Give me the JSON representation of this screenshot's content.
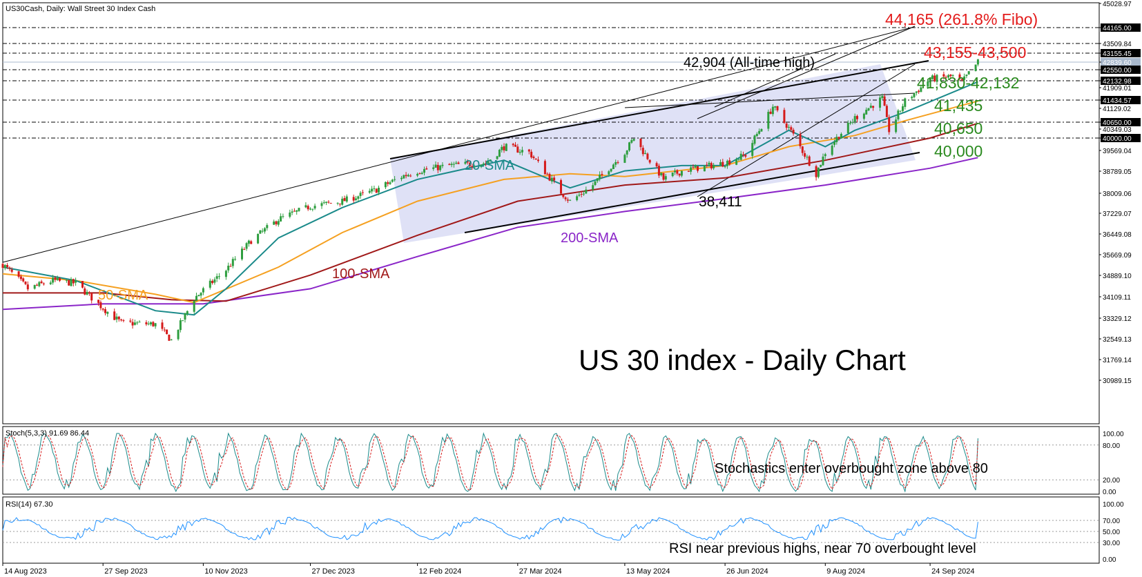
{
  "header": "US30Cash, Daily:  Wall Street 30 Index Cash",
  "chart_title": "US 30 index - Daily Chart",
  "price_axis": [
    "45028.97",
    "44165.00",
    "43509.84",
    "43155.45",
    "42839.60",
    "42550.00",
    "42132.98",
    "41909.01",
    "41434.57",
    "41129.02",
    "40650.00",
    "40349.03",
    "40000.00",
    "39569.04",
    "38789.05",
    "38009.06",
    "37229.07",
    "36449.08",
    "35669.09",
    "34889.10",
    "34109.11",
    "33329.12",
    "32549.13",
    "31769.14",
    "30989.15"
  ],
  "price_axis_values": [
    45028.97,
    44165.0,
    43509.84,
    43155.45,
    42839.6,
    42550.0,
    42132.98,
    41909.01,
    41434.57,
    41129.02,
    40650.0,
    40349.03,
    40000.0,
    39569.04,
    38789.05,
    38009.06,
    37229.07,
    36449.08,
    35669.09,
    34889.1,
    34109.11,
    33329.12,
    32549.13,
    31769.14,
    30989.15
  ],
  "dates": [
    "14 Aug 2023",
    "27 Sep 2023",
    "10 Nov 2023",
    "27 Dec 2023",
    "12 Feb 2024",
    "27 Mar 2024",
    "13 May 2024",
    "26 Jun 2024",
    "9 Aug 2024",
    "24 Sep 2024"
  ],
  "annotations": {
    "fibo": "44,165 (261.8% Fibo)",
    "res_zone": "43,155-43,500",
    "ath": "42,904 (All-time high)",
    "zone1": "41,830-42,132",
    "s1": "41,435",
    "s2": "40,650",
    "s3": "40,000",
    "low": "38,411",
    "sma20": "20-SMA",
    "sma50": "50-SMA",
    "sma100": "100-SMA",
    "sma200": "200-SMA"
  },
  "stoch": {
    "header": "Stoch(5,3,3) 91.69 86.44",
    "axis": [
      "100.00",
      "80.00",
      "20.00",
      "0.00"
    ],
    "note": "Stochastics enter overbought zone above 80"
  },
  "rsi": {
    "header": "RSI(14) 67.30",
    "axis": [
      "100.00",
      "70.00",
      "50.00",
      "30.00",
      "0.00"
    ],
    "note": "RSI near previous highs, near 70 overbought level"
  },
  "colors": {
    "bull": "#2e9e3f",
    "bear": "#d51a1a",
    "sma20": "#1a8a8a",
    "sma50": "#f5a020",
    "sma100": "#a01818",
    "sma200": "#8a25c8",
    "red_text": "#e31b1b",
    "green_text": "#2b8a1f",
    "channel": "#d9dcf5"
  },
  "chart_data": {
    "type": "candlestick",
    "title": "US 30 index - Daily Chart",
    "anchor_closes": [
      [
        "2023-08-14",
        35300
      ],
      [
        "2023-08-25",
        34400
      ],
      [
        "2023-09-05",
        34700
      ],
      [
        "2023-09-15",
        34600
      ],
      [
        "2023-09-27",
        33700
      ],
      [
        "2023-10-05",
        33150
      ],
      [
        "2023-10-20",
        33100
      ],
      [
        "2023-10-27",
        32500
      ],
      [
        "2023-11-06",
        34050
      ],
      [
        "2023-11-20",
        35100
      ],
      [
        "2023-12-01",
        36200
      ],
      [
        "2023-12-13",
        37000
      ],
      [
        "2023-12-27",
        37500
      ],
      [
        "2024-01-10",
        37700
      ],
      [
        "2024-01-24",
        38100
      ],
      [
        "2024-02-05",
        38600
      ],
      [
        "2024-02-12",
        38800
      ],
      [
        "2024-02-26",
        39000
      ],
      [
        "2024-03-13",
        39100
      ],
      [
        "2024-03-21",
        39700
      ],
      [
        "2024-04-01",
        39500
      ],
      [
        "2024-04-15",
        38050
      ],
      [
        "2024-04-19",
        37700
      ],
      [
        "2024-04-29",
        38300
      ],
      [
        "2024-05-13",
        39500
      ],
      [
        "2024-05-17",
        40000
      ],
      [
        "2024-05-30",
        38500
      ],
      [
        "2024-06-07",
        38800
      ],
      [
        "2024-06-26",
        39100
      ],
      [
        "2024-07-05",
        39400
      ],
      [
        "2024-07-17",
        41200
      ],
      [
        "2024-07-24",
        40400
      ],
      [
        "2024-08-05",
        38700
      ],
      [
        "2024-08-09",
        39500
      ],
      [
        "2024-08-22",
        40800
      ],
      [
        "2024-09-03",
        41500
      ],
      [
        "2024-09-06",
        40300
      ],
      [
        "2024-09-13",
        41400
      ],
      [
        "2024-09-24",
        42200
      ],
      [
        "2024-10-04",
        42300
      ],
      [
        "2024-10-08",
        42080
      ],
      [
        "2024-10-15",
        42840
      ]
    ],
    "sma20": [
      [
        "2023-08-14",
        35200
      ],
      [
        "2023-09-15",
        34700
      ],
      [
        "2023-10-20",
        33600
      ],
      [
        "2023-11-06",
        33450
      ],
      [
        "2023-11-20",
        34400
      ],
      [
        "2023-12-13",
        36300
      ],
      [
        "2024-01-10",
        37450
      ],
      [
        "2024-02-12",
        38500
      ],
      [
        "2024-03-21",
        39200
      ],
      [
        "2024-04-19",
        38200
      ],
      [
        "2024-05-13",
        38800
      ],
      [
        "2024-06-07",
        39000
      ],
      [
        "2024-06-26",
        39000
      ],
      [
        "2024-07-24",
        40300
      ],
      [
        "2024-08-09",
        39700
      ],
      [
        "2024-08-22",
        40300
      ],
      [
        "2024-09-13",
        41000
      ],
      [
        "2024-10-15",
        42100
      ]
    ],
    "sma50": [
      [
        "2023-08-14",
        34950
      ],
      [
        "2023-09-15",
        34700
      ],
      [
        "2023-10-20",
        34200
      ],
      [
        "2023-11-06",
        33900
      ],
      [
        "2023-12-13",
        35200
      ],
      [
        "2024-01-10",
        36500
      ],
      [
        "2024-02-12",
        37700
      ],
      [
        "2024-03-21",
        38500
      ],
      [
        "2024-04-19",
        38700
      ],
      [
        "2024-05-13",
        38600
      ],
      [
        "2024-06-26",
        39000
      ],
      [
        "2024-07-24",
        39700
      ],
      [
        "2024-08-22",
        40100
      ],
      [
        "2024-09-13",
        40700
      ],
      [
        "2024-10-15",
        41400
      ]
    ],
    "sma100": [
      [
        "2023-08-14",
        34250
      ],
      [
        "2023-09-27",
        34250
      ],
      [
        "2023-10-27",
        34000
      ],
      [
        "2023-11-20",
        33950
      ],
      [
        "2023-12-27",
        34900
      ],
      [
        "2024-02-12",
        36400
      ],
      [
        "2024-03-27",
        37700
      ],
      [
        "2024-05-13",
        38300
      ],
      [
        "2024-06-26",
        38550
      ],
      [
        "2024-08-09",
        39200
      ],
      [
        "2024-09-24",
        40000
      ],
      [
        "2024-10-15",
        40600
      ]
    ],
    "sma200": [
      [
        "2023-08-14",
        33650
      ],
      [
        "2023-09-27",
        33850
      ],
      [
        "2023-11-10",
        33850
      ],
      [
        "2023-12-27",
        34400
      ],
      [
        "2024-02-12",
        35600
      ],
      [
        "2024-03-27",
        36700
      ],
      [
        "2024-05-13",
        37300
      ],
      [
        "2024-06-26",
        37800
      ],
      [
        "2024-08-09",
        38300
      ],
      [
        "2024-09-24",
        38900
      ],
      [
        "2024-10-15",
        39300
      ]
    ],
    "levels": [
      44165,
      43509.84,
      43155.45,
      42550,
      42132.98,
      41434.57,
      40650,
      40000
    ],
    "stoch_last": [
      91.69,
      86.44
    ],
    "rsi_last": 67.3
  }
}
